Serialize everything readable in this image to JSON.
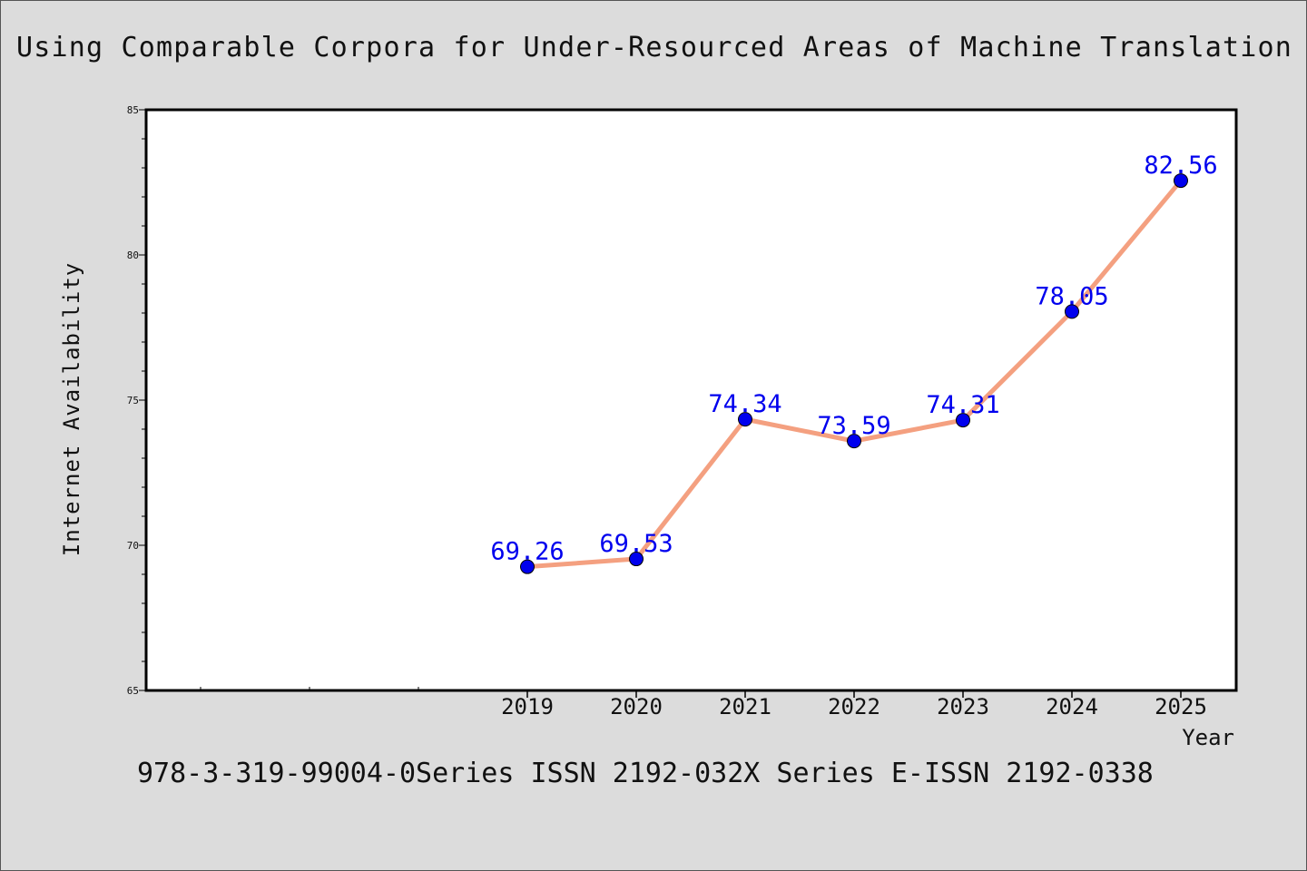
{
  "chart_data": {
    "type": "line",
    "title": "Using Comparable Corpora for Under-Resourced Areas of Machine Translation",
    "xlabel": "Year",
    "ylabel": "Internet Availability",
    "categories": [
      "2019",
      "2020",
      "2021",
      "2022",
      "2023",
      "2024",
      "2025"
    ],
    "values": [
      69.26,
      69.53,
      74.34,
      73.59,
      74.31,
      78.05,
      82.56
    ],
    "data_labels": [
      "69.26",
      "69.53",
      "74.34",
      "73.59",
      "74.31",
      "78.05",
      "82.56"
    ],
    "ylim": [
      65,
      85
    ],
    "yticks": [
      "65",
      "70",
      "75",
      "80",
      "85"
    ],
    "grid": false,
    "line_color": "#f4a080",
    "marker_color": "#0000ee",
    "label_color": "#0000ee"
  },
  "footer": {
    "text": "978-3-319-99004-0Series ISSN 2192-032X Series E-ISSN 2192-0338"
  }
}
